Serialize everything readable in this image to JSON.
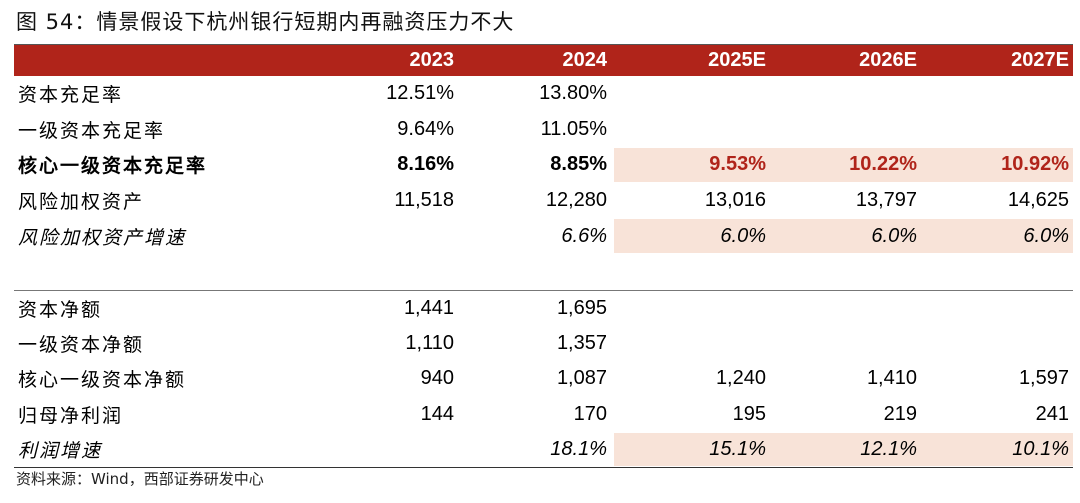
{
  "title": "图 54：情景假设下杭州银行短期内再融资压力不大",
  "header": [
    "2023",
    "2024",
    "2025E",
    "2026E",
    "2027E"
  ],
  "rows": [
    {
      "label": "资本充足率",
      "values": [
        "12.51%",
        "13.80%",
        "",
        "",
        ""
      ]
    },
    {
      "label": "一级资本充足率",
      "values": [
        "9.64%",
        "11.05%",
        "",
        "",
        ""
      ]
    },
    {
      "label": "核心一级资本充足率",
      "values": [
        "8.16%",
        "8.85%",
        "9.53%",
        "10.22%",
        "10.92%"
      ]
    },
    {
      "label": "风险加权资产",
      "values": [
        "11,518",
        "12,280",
        "13,016",
        "13,797",
        "14,625"
      ]
    },
    {
      "label": "风险加权资产增速",
      "values": [
        "",
        "6.6%",
        "6.0%",
        "6.0%",
        "6.0%"
      ]
    },
    {
      "label": "资本净额",
      "values": [
        "1,441",
        "1,695",
        "",
        "",
        ""
      ]
    },
    {
      "label": "一级资本净额",
      "values": [
        "1,110",
        "1,357",
        "",
        "",
        ""
      ]
    },
    {
      "label": "核心一级资本净额",
      "values": [
        "940",
        "1,087",
        "1,240",
        "1,410",
        "1,597"
      ]
    },
    {
      "label": "归母净利润",
      "values": [
        "144",
        "170",
        "195",
        "219",
        "241"
      ]
    },
    {
      "label": "利润增速",
      "values": [
        "",
        "18.1%",
        "15.1%",
        "12.1%",
        "10.1%"
      ]
    }
  ],
  "source": "资料来源：Wind，西部证券研发中心",
  "colors": {
    "header_bg": "#b0241a",
    "highlight_bg": "#f8e3d8",
    "highlight_text": "#b0241a"
  }
}
